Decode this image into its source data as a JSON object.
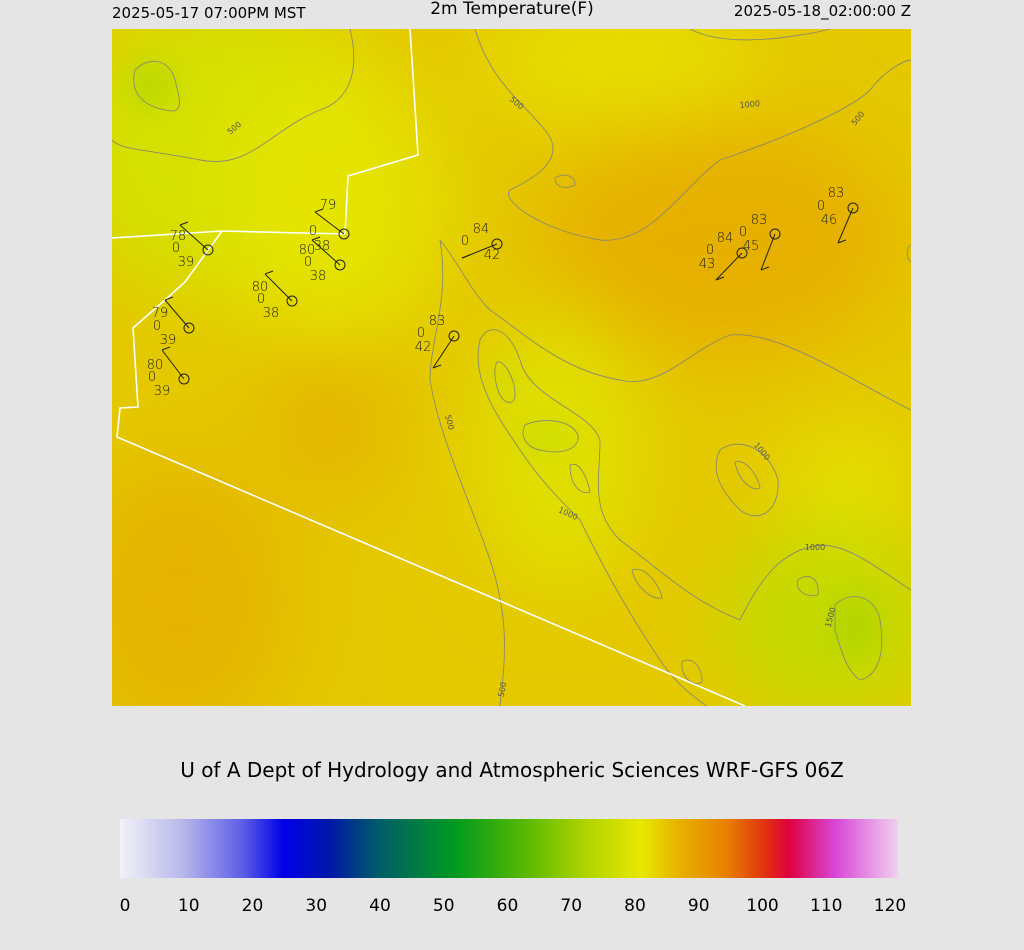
{
  "header": {
    "left": "2025-05-17 07:00PM MST",
    "title": "2m Temperature(F)",
    "right": "2025-05-18_02:00:00 Z"
  },
  "stations": [
    {
      "temperature": 78,
      "code": 0,
      "dewpoint": 39
    },
    {
      "temperature": 79,
      "code": 0,
      "dewpoint": 38
    },
    {
      "temperature": 80,
      "code": 0,
      "dewpoint": 38
    },
    {
      "temperature": 80,
      "code": 0,
      "dewpoint": 38
    },
    {
      "temperature": 79,
      "code": 0,
      "dewpoint": 39
    },
    {
      "temperature": 80,
      "code": 0,
      "dewpoint": 39
    },
    {
      "temperature": 84,
      "code": 0,
      "dewpoint": 42
    },
    {
      "temperature": 83,
      "code": 0,
      "dewpoint": 42
    },
    {
      "temperature": 84,
      "code": 0,
      "dewpoint": 43
    },
    {
      "temperature": 83,
      "code": 0,
      "dewpoint": 45
    },
    {
      "temperature": 83,
      "code": 0,
      "dewpoint": 46
    }
  ],
  "contours": {
    "labels": [
      500,
      500,
      1000,
      500,
      500,
      1000,
      1000,
      1000,
      1500,
      500
    ]
  },
  "credit": "U of A Dept of Hydrology and Atmospheric Sciences WRF-GFS 06Z",
  "colorbar": {
    "range": [
      0,
      120
    ],
    "ticks": [
      0,
      10,
      20,
      30,
      40,
      50,
      60,
      70,
      80,
      90,
      100,
      110,
      120
    ]
  }
}
